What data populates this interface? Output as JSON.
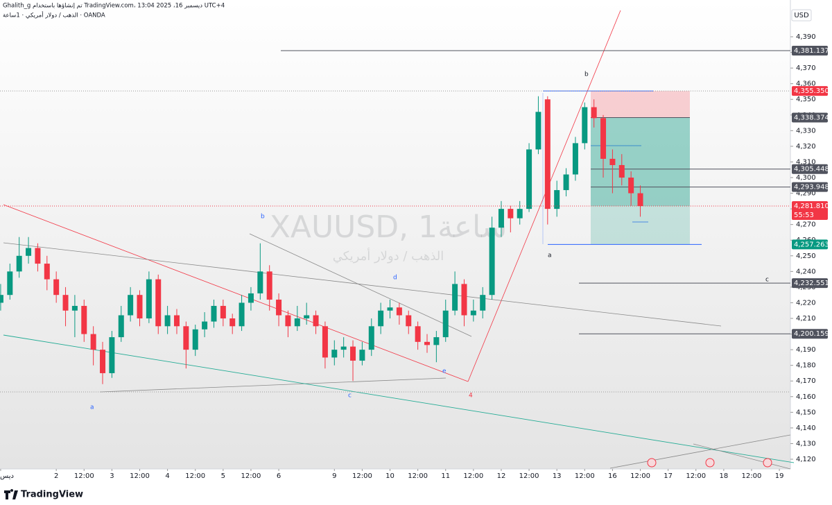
{
  "chart_data": {
    "type": "candlestick",
    "header": "Ghalith_g تم إنشاؤها باستخدام TradingView.com، ديسمبر 16، 2025 13:04 UTC+4",
    "subheader": "الذهب / دولار أمريكي · 1ساعة · OANDA",
    "watermark": "XAUUSD, 1ساعة",
    "watermark_sub": "الذهب / دولار أمريكي",
    "currency": "USD",
    "logo": "TradingView",
    "up_color": "#089981",
    "down_color": "#f23645",
    "x": [
      0,
      1,
      2,
      3,
      4,
      5,
      6,
      7,
      8,
      9,
      10,
      11,
      12,
      13,
      14,
      15,
      16,
      17,
      18,
      19,
      20,
      21,
      22,
      23,
      24,
      25,
      26,
      27,
      28,
      29,
      30,
      31,
      32,
      33,
      34,
      35,
      36,
      37,
      38,
      39,
      40,
      41,
      42,
      43,
      44,
      45,
      46,
      47,
      48,
      49,
      50,
      51,
      52,
      53,
      54,
      55,
      56,
      57,
      58,
      59,
      60,
      61,
      62,
      63,
      64,
      65,
      66,
      67,
      68,
      69
    ],
    "open": [
      4220,
      4225,
      4240,
      4250,
      4255,
      4245,
      4235,
      4225,
      4215,
      4218,
      4200,
      4190,
      4175,
      4198,
      4212,
      4225,
      4210,
      4235,
      4205,
      4212,
      4205,
      4190,
      4203,
      4208,
      4218,
      4210,
      4205,
      4220,
      4226,
      4240,
      4222,
      4212,
      4205,
      4210,
      4212,
      4205,
      4185,
      4190,
      4192,
      4183,
      4190,
      4205,
      4215,
      4217,
      4212,
      4205,
      4195,
      4193,
      4198,
      4215,
      4232,
      4212,
      4215,
      4225,
      4268,
      4280,
      4274,
      4280,
      4318,
      4350,
      4280,
      4292,
      4302,
      4322,
      4345,
      4338,
      4312,
      4308,
      4300,
      4290
    ],
    "high": [
      4232,
      4245,
      4262,
      4262,
      4258,
      4250,
      4240,
      4230,
      4225,
      4222,
      4205,
      4195,
      4202,
      4218,
      4230,
      4228,
      4240,
      4238,
      4218,
      4216,
      4208,
      4206,
      4214,
      4222,
      4222,
      4213,
      4225,
      4230,
      4258,
      4244,
      4226,
      4215,
      4218,
      4220,
      4215,
      4208,
      4196,
      4198,
      4196,
      4195,
      4210,
      4220,
      4222,
      4220,
      4215,
      4208,
      4200,
      4202,
      4222,
      4240,
      4235,
      4222,
      4230,
      4275,
      4285,
      4282,
      4285,
      4322,
      4352,
      4352,
      4298,
      4306,
      4326,
      4348,
      4350,
      4340,
      4318,
      4315,
      4304,
      4295
    ],
    "low": [
      4215,
      4222,
      4236,
      4245,
      4240,
      4228,
      4220,
      4205,
      4198,
      4195,
      4180,
      4168,
      4172,
      4195,
      4208,
      4205,
      4207,
      4200,
      4200,
      4200,
      4178,
      4186,
      4198,
      4204,
      4205,
      4200,
      4202,
      4215,
      4222,
      4215,
      4205,
      4198,
      4202,
      4206,
      4200,
      4178,
      4180,
      4185,
      4170,
      4180,
      4186,
      4200,
      4210,
      4206,
      4200,
      4190,
      4188,
      4182,
      4195,
      4212,
      4205,
      4208,
      4210,
      4222,
      4262,
      4265,
      4270,
      4278,
      4315,
      4270,
      4275,
      4288,
      4298,
      4318,
      4332,
      4300,
      4290,
      4295,
      4282,
      4275
    ],
    "close": [
      4225,
      4240,
      4250,
      4255,
      4245,
      4235,
      4225,
      4215,
      4218,
      4200,
      4190,
      4175,
      4198,
      4212,
      4225,
      4210,
      4235,
      4205,
      4212,
      4205,
      4190,
      4203,
      4208,
      4218,
      4210,
      4205,
      4220,
      4226,
      4240,
      4222,
      4212,
      4205,
      4210,
      4212,
      4205,
      4185,
      4190,
      4192,
      4183,
      4190,
      4205,
      4215,
      4217,
      4212,
      4205,
      4195,
      4193,
      4198,
      4215,
      4232,
      4212,
      4215,
      4225,
      4268,
      4280,
      4274,
      4280,
      4318,
      4342,
      4280,
      4292,
      4302,
      4322,
      4345,
      4338,
      4312,
      4308,
      4300,
      4290,
      4281.81
    ],
    "xlim": [
      -0.07,
      85.19
    ],
    "xticks": [
      {
        "value": 0,
        "label": "ديس"
      },
      {
        "value": 6,
        "label": "2"
      },
      {
        "value": 9,
        "label": "12:00"
      },
      {
        "value": 12,
        "label": "3"
      },
      {
        "value": 15,
        "label": "12:00"
      },
      {
        "value": 18,
        "label": "4"
      },
      {
        "value": 21,
        "label": "12:00"
      },
      {
        "value": 24,
        "label": "5"
      },
      {
        "value": 27,
        "label": "12:00"
      },
      {
        "value": 30,
        "label": "6"
      },
      {
        "value": 36,
        "label": "9"
      },
      {
        "value": 39,
        "label": "12:00"
      },
      {
        "value": 42,
        "label": "10"
      },
      {
        "value": 45,
        "label": "12:00"
      },
      {
        "value": 48,
        "label": "11"
      },
      {
        "value": 51,
        "label": "12:00"
      },
      {
        "value": 54,
        "label": "12"
      },
      {
        "value": 57,
        "label": "12:00"
      },
      {
        "value": 60,
        "label": "13"
      },
      {
        "value": 63,
        "label": "12:00"
      },
      {
        "value": 66,
        "label": "16"
      },
      {
        "value": 69,
        "label": "12:00"
      },
      {
        "value": 72,
        "label": "17"
      },
      {
        "value": 75,
        "label": "12:00"
      },
      {
        "value": 78,
        "label": "18"
      },
      {
        "value": 81,
        "label": "12:00"
      },
      {
        "value": 84,
        "label": "19"
      }
    ],
    "ylim": [
      4113.8,
      4413.5
    ],
    "yticks": [
      {
        "value": 4120,
        "label": "4,120"
      },
      {
        "value": 4130,
        "label": "4,130"
      },
      {
        "value": 4140,
        "label": "4,140"
      },
      {
        "value": 4150,
        "label": "4,150"
      },
      {
        "value": 4160,
        "label": "4,160"
      },
      {
        "value": 4170,
        "label": "4,170"
      },
      {
        "value": 4180,
        "label": "4,180"
      },
      {
        "value": 4190,
        "label": "4,190"
      },
      {
        "value": 4200,
        "label": "4,200"
      },
      {
        "value": 4210,
        "label": "4,210"
      },
      {
        "value": 4220,
        "label": "4,220"
      },
      {
        "value": 4230,
        "label": "4,230"
      },
      {
        "value": 4240,
        "label": "4,240"
      },
      {
        "value": 4250,
        "label": "4,250"
      },
      {
        "value": 4260,
        "label": "4,260"
      },
      {
        "value": 4270,
        "label": "4,270"
      },
      {
        "value": 4280,
        "label": "4,280"
      },
      {
        "value": 4290,
        "label": "4,290"
      },
      {
        "value": 4300,
        "label": "4,300"
      },
      {
        "value": 4310,
        "label": "4,310"
      },
      {
        "value": 4320,
        "label": "4,320"
      },
      {
        "value": 4330,
        "label": "4,330"
      },
      {
        "value": 4340,
        "label": "4,340"
      },
      {
        "value": 4350,
        "label": "4,350"
      },
      {
        "value": 4360,
        "label": "4,360"
      },
      {
        "value": 4370,
        "label": "4,370"
      },
      {
        "value": 4380,
        "label": "4,380"
      },
      {
        "value": 4390,
        "label": "4,390"
      }
    ],
    "price_levels": [
      {
        "value": 4381.137,
        "label": "4,381.137",
        "color": "#50535e"
      },
      {
        "value": 4355.35,
        "label": "4,355.350",
        "color": "#f23645"
      },
      {
        "value": 4338.374,
        "label": "4,338.374",
        "color": "#50535e"
      },
      {
        "value": 4305.448,
        "label": "4,305.448",
        "color": "#50535e"
      },
      {
        "value": 4293.948,
        "label": "4,293.948",
        "color": "#50535e"
      },
      {
        "value": 4257.263,
        "label": "4,257.263",
        "color": "#089981"
      },
      {
        "value": 4232.551,
        "label": "4,232.551",
        "color": "#50535e"
      },
      {
        "value": 4200.159,
        "label": "4,200.159",
        "color": "#50535e"
      }
    ],
    "current_price": {
      "value": 4281.81,
      "label": "4,281.810",
      "countdown": "55:53",
      "color": "#f23645"
    },
    "annotations": [
      "a",
      "b",
      "d",
      "c",
      "e",
      "4",
      "b",
      "a",
      "c"
    ]
  }
}
